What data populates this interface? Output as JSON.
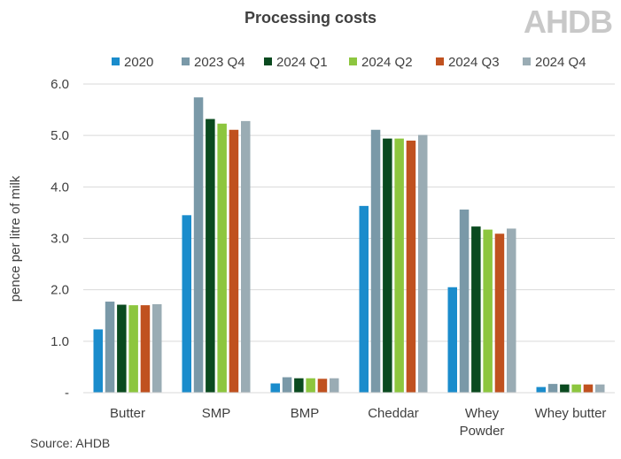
{
  "chart_data": {
    "type": "bar",
    "title": "Processing costs",
    "logo_text": "AHDB",
    "source": "Source: AHDB",
    "ylabel": "pence per litre of milk",
    "xlabel": "",
    "ylim": [
      0,
      6
    ],
    "yticks": [
      "-",
      "1.0",
      "2.0",
      "3.0",
      "4.0",
      "5.0",
      "6.0"
    ],
    "grid": true,
    "legend_position": "top",
    "categories": [
      "Butter",
      "SMP",
      "BMP",
      "Cheddar",
      "Whey Powder",
      "Whey butter"
    ],
    "category_lines": [
      [
        "Butter"
      ],
      [
        "SMP"
      ],
      [
        "BMP"
      ],
      [
        "Cheddar"
      ],
      [
        "Whey",
        "Powder"
      ],
      [
        "Whey butter"
      ]
    ],
    "series": [
      {
        "name": "2020",
        "color": "#1a8ccc",
        "values": [
          1.23,
          3.45,
          0.18,
          3.63,
          2.05,
          0.11
        ]
      },
      {
        "name": "2023 Q4",
        "color": "#7a99a8",
        "values": [
          1.77,
          5.74,
          0.3,
          5.11,
          3.56,
          0.17
        ]
      },
      {
        "name": "2024 Q1",
        "color": "#0a4a1f",
        "values": [
          1.71,
          5.32,
          0.28,
          4.94,
          3.23,
          0.16
        ]
      },
      {
        "name": "2024 Q2",
        "color": "#8dc63f",
        "values": [
          1.7,
          5.23,
          0.28,
          4.94,
          3.17,
          0.16
        ]
      },
      {
        "name": "2024 Q3",
        "color": "#c0511f",
        "values": [
          1.7,
          5.11,
          0.27,
          4.9,
          3.09,
          0.16
        ]
      },
      {
        "name": "2024 Q4",
        "color": "#9aacb4",
        "values": [
          1.72,
          5.28,
          0.28,
          5.01,
          3.19,
          0.16
        ]
      }
    ]
  }
}
